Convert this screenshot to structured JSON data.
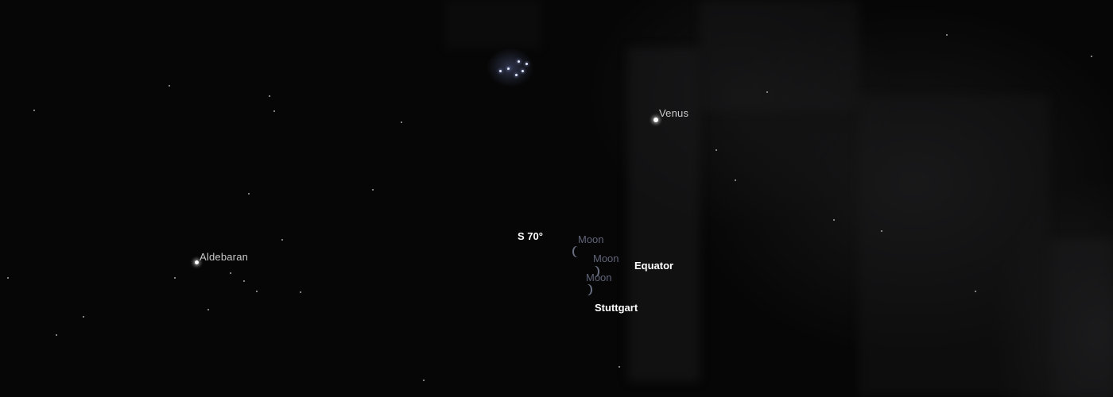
{
  "objects": {
    "venus": "Venus",
    "aldebaran": "Aldebaran",
    "moon_1": "Moon",
    "moon_2": "Moon",
    "moon_3": "Moon"
  },
  "markers": {
    "direction": "S 70°",
    "equator": "Equator",
    "location": "Stuttgart"
  },
  "colors": {
    "sky_background": "#060606",
    "object_label": "#c9c9c9",
    "moon_label": "#5f6478",
    "marker_label": "#ffffff"
  },
  "icons": [
    "star-icon",
    "crescent-moon-icon",
    "star-cluster-icon"
  ]
}
